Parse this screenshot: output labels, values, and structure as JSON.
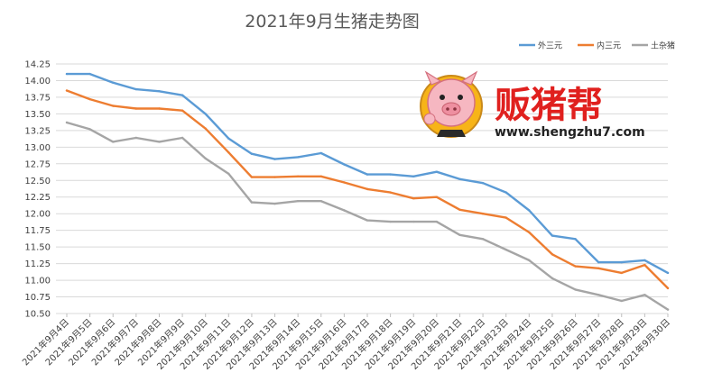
{
  "chart_data": {
    "type": "line",
    "title": "2021年9月生猪走势图",
    "categories": [
      "2021年9月4日",
      "2021年9月5日",
      "2021年9月6日",
      "2021年9月7日",
      "2021年9月8日",
      "2021年9月9日",
      "2021年9月10日",
      "2021年9月11日",
      "2021年9月12日",
      "2021年9月13日",
      "2021年9月14日",
      "2021年9月15日",
      "2021年9月16日",
      "2021年9月17日",
      "2021年9月18日",
      "2021年9月19日",
      "2021年9月20日",
      "2021年9月21日",
      "2021年9月22日",
      "2021年9月23日",
      "2021年9月24日",
      "2021年9月25日",
      "2021年9月26日",
      "2021年9月27日",
      "2021年9月28日",
      "2021年9月29日",
      "2021年9月30日"
    ],
    "series": [
      {
        "name": "外三元",
        "color": "#5b9bd5",
        "values": [
          14.1,
          14.1,
          13.97,
          13.87,
          13.84,
          13.78,
          13.5,
          13.13,
          12.9,
          12.82,
          12.85,
          12.91,
          12.74,
          12.59,
          12.59,
          12.56,
          12.63,
          12.52,
          12.46,
          12.32,
          12.05,
          11.67,
          11.62,
          11.27,
          11.27,
          11.3,
          11.11
        ]
      },
      {
        "name": "内三元",
        "color": "#ed7d31",
        "values": [
          13.85,
          13.72,
          13.62,
          13.58,
          13.58,
          13.55,
          13.28,
          12.92,
          12.55,
          12.55,
          12.56,
          12.56,
          12.47,
          12.37,
          12.32,
          12.23,
          12.25,
          12.06,
          12.0,
          11.94,
          11.72,
          11.39,
          11.21,
          11.18,
          11.11,
          11.23,
          10.88
        ]
      },
      {
        "name": "土杂猪",
        "color": "#a5a5a5",
        "values": [
          13.37,
          13.27,
          13.08,
          13.14,
          13.08,
          13.14,
          12.83,
          12.6,
          12.17,
          12.15,
          12.19,
          12.19,
          12.05,
          11.9,
          11.88,
          11.88,
          11.88,
          11.68,
          11.62,
          11.46,
          11.3,
          11.03,
          10.86,
          10.78,
          10.69,
          10.78,
          10.56
        ]
      }
    ],
    "y_ticks": [
      "14.25",
      "14.00",
      "13.75",
      "13.50",
      "13.25",
      "13.00",
      "12.75",
      "12.50",
      "12.25",
      "12.00",
      "11.75",
      "11.50",
      "11.25",
      "11.00",
      "10.75",
      "10.50"
    ],
    "ylim": [
      10.5,
      14.25
    ],
    "grid": true,
    "legend_position": "top-right"
  },
  "brand": {
    "name": "贩猪帮",
    "url": "www.shengzhu7.com"
  }
}
